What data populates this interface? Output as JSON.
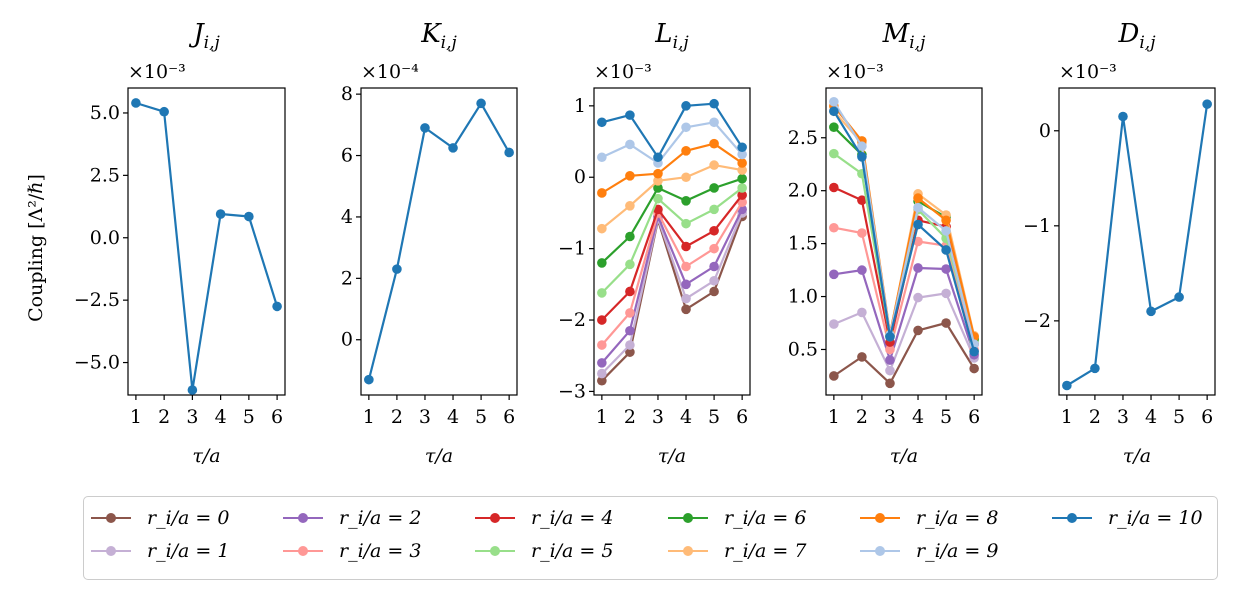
{
  "figure": {
    "ylabel": "Coupling [Λ²/ℏ]",
    "xlabel": "τ/a"
  },
  "chart_data": [
    {
      "type": "line",
      "title": "J_{i,j}",
      "title_main": "J",
      "title_sub": "i,j",
      "multiplier": "×10⁻³",
      "xlabel": "τ/a",
      "ylabel": "Coupling [Λ²/ℏ]",
      "x": [
        1,
        2,
        3,
        4,
        5,
        6
      ],
      "ylim": [
        -6.3,
        6.0
      ],
      "yticks": [
        5.0,
        2.5,
        0.0,
        -2.5,
        -5.0
      ],
      "ytick_labels": [
        "5.0",
        "2.5",
        "0.0",
        "−2.5",
        "−5.0"
      ],
      "series": [
        {
          "name": "r_i/a = 10",
          "color": "#1f77b4",
          "values": [
            5.4,
            5.05,
            -6.1,
            0.95,
            0.85,
            -2.75
          ]
        }
      ]
    },
    {
      "type": "line",
      "title": "K_{i,j}",
      "title_main": "K",
      "title_sub": "i,j",
      "multiplier": "×10⁻⁴",
      "xlabel": "τ/a",
      "x": [
        1,
        2,
        3,
        4,
        5,
        6
      ],
      "ylim": [
        -1.8,
        8.2
      ],
      "yticks": [
        8,
        6,
        4,
        2,
        0
      ],
      "ytick_labels": [
        "8",
        "6",
        "4",
        "2",
        "0"
      ],
      "series": [
        {
          "name": "r_i/a = 10",
          "color": "#1f77b4",
          "values": [
            -1.3,
            2.3,
            6.9,
            6.25,
            7.7,
            6.1
          ]
        }
      ]
    },
    {
      "type": "line",
      "title": "L_{i,j}",
      "title_main": "L",
      "title_sub": "i,j",
      "multiplier": "×10⁻³",
      "xlabel": "τ/a",
      "x": [
        1,
        2,
        3,
        4,
        5,
        6
      ],
      "ylim": [
        -3.05,
        1.25
      ],
      "yticks": [
        1,
        0,
        -1,
        -2,
        -3
      ],
      "ytick_labels": [
        "1",
        "0",
        "−1",
        "−2",
        "−3"
      ],
      "series": [
        {
          "name": "r_i/a = 0",
          "color": "#8c564b",
          "values": [
            -2.85,
            -2.45,
            -0.6,
            -1.85,
            -1.6,
            -0.55
          ]
        },
        {
          "name": "r_i/a = 1",
          "color": "#c5b0d5",
          "values": [
            -2.75,
            -2.35,
            -0.58,
            -1.7,
            -1.45,
            -0.5
          ]
        },
        {
          "name": "r_i/a = 2",
          "color": "#9467bd",
          "values": [
            -2.6,
            -2.15,
            -0.55,
            -1.5,
            -1.25,
            -0.45
          ]
        },
        {
          "name": "r_i/a = 3",
          "color": "#ff9896",
          "values": [
            -2.35,
            -1.9,
            -0.5,
            -1.25,
            -1.0,
            -0.35
          ]
        },
        {
          "name": "r_i/a = 4",
          "color": "#d62728",
          "values": [
            -2.0,
            -1.6,
            -0.45,
            -0.97,
            -0.75,
            -0.25
          ]
        },
        {
          "name": "r_i/a = 5",
          "color": "#98df8a",
          "values": [
            -1.62,
            -1.22,
            -0.3,
            -0.65,
            -0.45,
            -0.15
          ]
        },
        {
          "name": "r_i/a = 6",
          "color": "#2ca02c",
          "values": [
            -1.2,
            -0.83,
            -0.15,
            -0.33,
            -0.15,
            -0.02
          ]
        },
        {
          "name": "r_i/a = 7",
          "color": "#ffbb78",
          "values": [
            -0.72,
            -0.4,
            -0.05,
            0.0,
            0.17,
            0.1
          ]
        },
        {
          "name": "r_i/a = 8",
          "color": "#ff7f0e",
          "values": [
            -0.22,
            0.02,
            0.05,
            0.37,
            0.47,
            0.2
          ]
        },
        {
          "name": "r_i/a = 9",
          "color": "#aec7e8",
          "values": [
            0.28,
            0.46,
            0.2,
            0.7,
            0.77,
            0.32
          ]
        },
        {
          "name": "r_i/a = 10",
          "color": "#1f77b4",
          "values": [
            0.77,
            0.87,
            0.28,
            1.0,
            1.03,
            0.42
          ]
        }
      ]
    },
    {
      "type": "line",
      "title": "M_{i,j}",
      "title_main": "M",
      "title_sub": "i,j",
      "multiplier": "×10⁻³",
      "xlabel": "τ/a",
      "x": [
        1,
        2,
        3,
        4,
        5,
        6
      ],
      "ylim": [
        0.07,
        2.97
      ],
      "yticks": [
        2.5,
        2.0,
        1.5,
        1.0,
        0.5
      ],
      "ytick_labels": [
        "2.5",
        "2.0",
        "1.5",
        "1.0",
        "0.5"
      ],
      "series": [
        {
          "name": "r_i/a = 0",
          "color": "#8c564b",
          "values": [
            0.25,
            0.43,
            0.18,
            0.68,
            0.75,
            0.32
          ]
        },
        {
          "name": "r_i/a = 1",
          "color": "#c5b0d5",
          "values": [
            0.74,
            0.85,
            0.3,
            0.99,
            1.03,
            0.42
          ]
        },
        {
          "name": "r_i/a = 2",
          "color": "#9467bd",
          "values": [
            1.21,
            1.25,
            0.4,
            1.27,
            1.26,
            0.45
          ]
        },
        {
          "name": "r_i/a = 3",
          "color": "#ff9896",
          "values": [
            1.65,
            1.6,
            0.5,
            1.52,
            1.48,
            0.5
          ]
        },
        {
          "name": "r_i/a = 4",
          "color": "#d62728",
          "values": [
            2.03,
            1.91,
            0.57,
            1.72,
            1.66,
            0.55
          ]
        },
        {
          "name": "r_i/a = 5",
          "color": "#98df8a",
          "values": [
            2.35,
            2.16,
            0.62,
            1.82,
            1.55,
            0.58
          ]
        },
        {
          "name": "r_i/a = 6",
          "color": "#2ca02c",
          "values": [
            2.6,
            2.34,
            0.63,
            1.9,
            1.75,
            0.6
          ]
        },
        {
          "name": "r_i/a = 7",
          "color": "#ffbb78",
          "values": [
            2.75,
            2.45,
            0.64,
            1.97,
            1.77,
            0.63
          ]
        },
        {
          "name": "r_i/a = 8",
          "color": "#ff7f0e",
          "values": [
            2.8,
            2.47,
            0.65,
            1.93,
            1.72,
            0.62
          ]
        },
        {
          "name": "r_i/a = 9",
          "color": "#aec7e8",
          "values": [
            2.84,
            2.42,
            0.64,
            1.84,
            1.62,
            0.55
          ]
        },
        {
          "name": "r_i/a = 10",
          "color": "#1f77b4",
          "values": [
            2.75,
            2.32,
            0.62,
            1.68,
            1.44,
            0.48
          ]
        }
      ]
    },
    {
      "type": "line",
      "title": "D_{i,j}",
      "title_main": "D",
      "title_sub": "i,j",
      "multiplier": "×10⁻³",
      "xlabel": "τ/a",
      "x": [
        1,
        2,
        3,
        4,
        5,
        6
      ],
      "ylim": [
        -2.78,
        0.45
      ],
      "yticks": [
        0,
        -1,
        -2
      ],
      "ytick_labels": [
        "0",
        "−1",
        "−2"
      ],
      "series": [
        {
          "name": "r_i/a = 10",
          "color": "#1f77b4",
          "values": [
            -2.68,
            -2.5,
            0.15,
            -1.9,
            -1.75,
            0.28
          ]
        }
      ]
    }
  ],
  "legend": {
    "placement": "bottom",
    "items": [
      {
        "label": "r_i/a = 0",
        "color": "#8c564b"
      },
      {
        "label": "r_i/a = 1",
        "color": "#c5b0d5"
      },
      {
        "label": "r_i/a = 2",
        "color": "#9467bd"
      },
      {
        "label": "r_i/a = 3",
        "color": "#ff9896"
      },
      {
        "label": "r_i/a = 4",
        "color": "#d62728"
      },
      {
        "label": "r_i/a = 5",
        "color": "#98df8a"
      },
      {
        "label": "r_i/a = 6",
        "color": "#2ca02c"
      },
      {
        "label": "r_i/a = 7",
        "color": "#ffbb78"
      },
      {
        "label": "r_i/a = 8",
        "color": "#ff7f0e"
      },
      {
        "label": "r_i/a = 9",
        "color": "#aec7e8"
      },
      {
        "label": "r_i/a = 10",
        "color": "#1f77b4"
      }
    ]
  }
}
